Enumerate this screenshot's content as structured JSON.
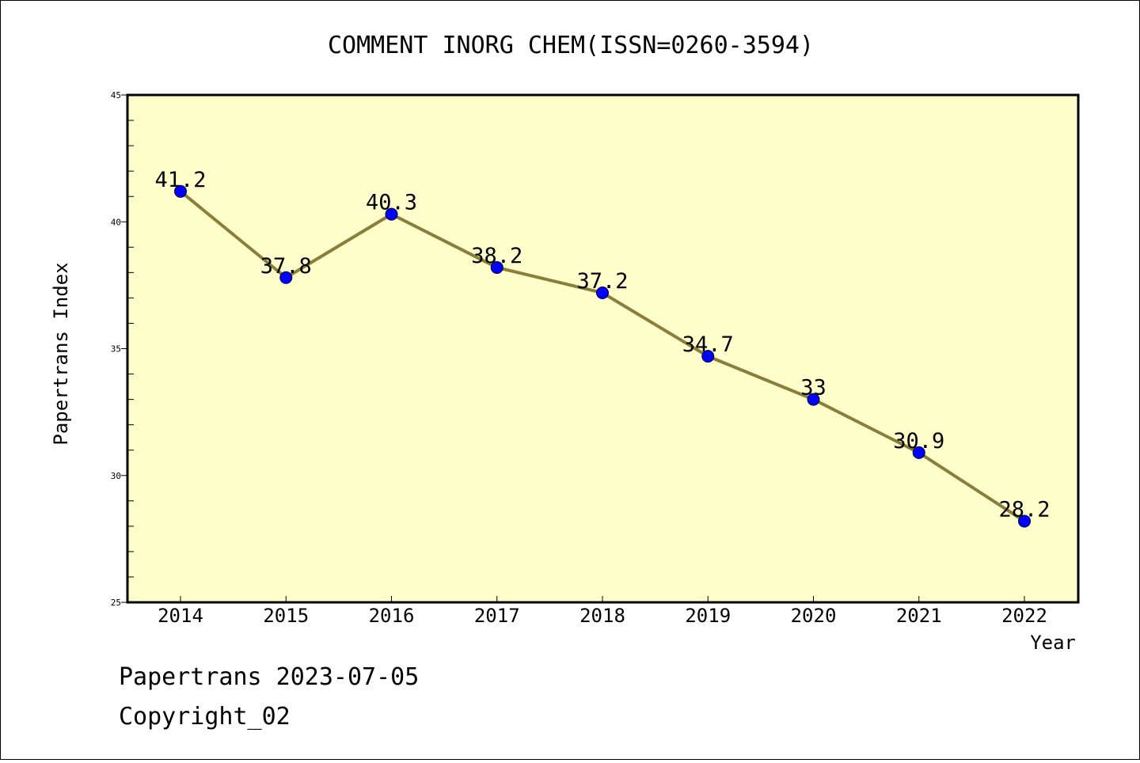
{
  "chart_data": {
    "type": "line",
    "title": "COMMENT INORG CHEM(ISSN=0260-3594)",
    "xlabel": "Year",
    "ylabel": "Papertrans Index",
    "categories": [
      "2014",
      "2015",
      "2016",
      "2017",
      "2018",
      "2019",
      "2020",
      "2021",
      "2022"
    ],
    "series": [
      {
        "values": [
          41.2,
          37.8,
          40.3,
          38.2,
          37.2,
          34.7,
          33,
          30.9,
          28.2
        ],
        "labels": [
          "41.2",
          "37.8",
          "40.3",
          "38.2",
          "37.2",
          "34.7",
          "33",
          "30.9",
          "28.2"
        ]
      }
    ],
    "ylim": [
      25,
      45
    ],
    "yticks": [
      25,
      30,
      35,
      40,
      45
    ],
    "ytick_labels": [
      "25",
      "30",
      "35",
      "40",
      "45"
    ],
    "grid": false,
    "colors": {
      "plot_background": "#ffffcc",
      "line": "#8b7d3a",
      "marker": "#0000ff"
    }
  },
  "footer": {
    "line1": "Papertrans 2023-07-05",
    "line2": "Copyright_02"
  }
}
